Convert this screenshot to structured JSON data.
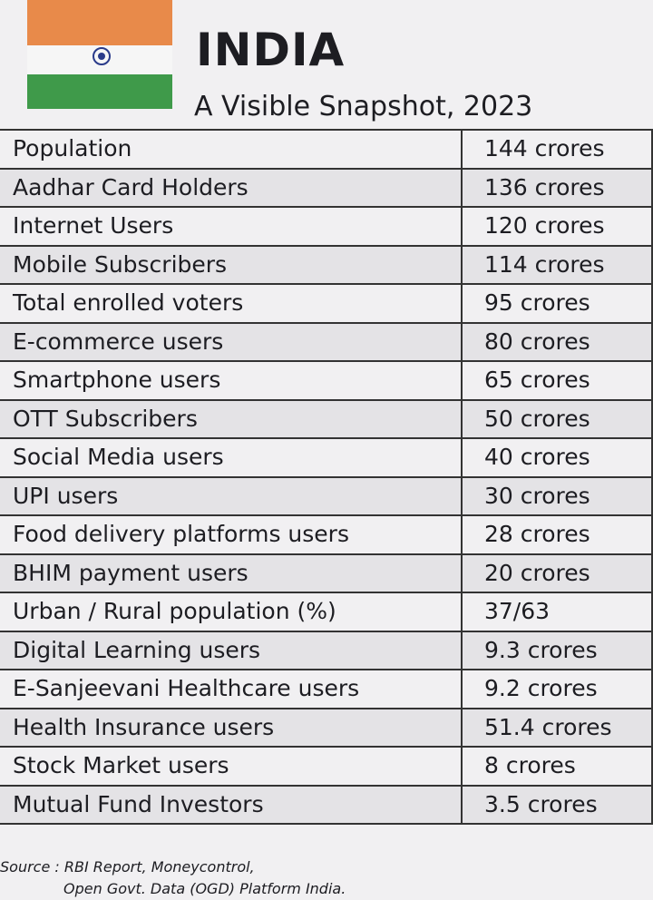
{
  "header": {
    "title": "INDIA",
    "subtitle": "A Visible Snapshot, 2023"
  },
  "table": {
    "rows": [
      [
        "Population",
        "144 crores"
      ],
      [
        "Aadhar Card Holders",
        "136 crores"
      ],
      [
        "Internet Users",
        "120 crores"
      ],
      [
        "Mobile Subscribers",
        "114 crores"
      ],
      [
        "Total enrolled voters",
        "95 crores"
      ],
      [
        "E-commerce users",
        "80 crores"
      ],
      [
        "Smartphone users",
        "65 crores"
      ],
      [
        "OTT Subscribers",
        "50 crores"
      ],
      [
        "Social Media users",
        "40 crores"
      ],
      [
        "UPI users",
        "30 crores"
      ],
      [
        "Food delivery platforms users",
        "28 crores"
      ],
      [
        "BHIM payment users",
        "20 crores"
      ],
      [
        "Urban / Rural population (%)",
        "37/63"
      ],
      [
        "Digital Learning users",
        "9.3 crores"
      ],
      [
        "E-Sanjeevani Healthcare users",
        "9.2 crores"
      ],
      [
        "Health Insurance users",
        "51.4 crores"
      ],
      [
        "Stock Market users",
        "8 crores"
      ],
      [
        "Mutual Fund Investors",
        "3.5 crores"
      ]
    ]
  },
  "source": {
    "line1": "Source : RBI Report, Moneycontrol,",
    "line2": "Open Govt. Data (OGD) Platform India."
  }
}
